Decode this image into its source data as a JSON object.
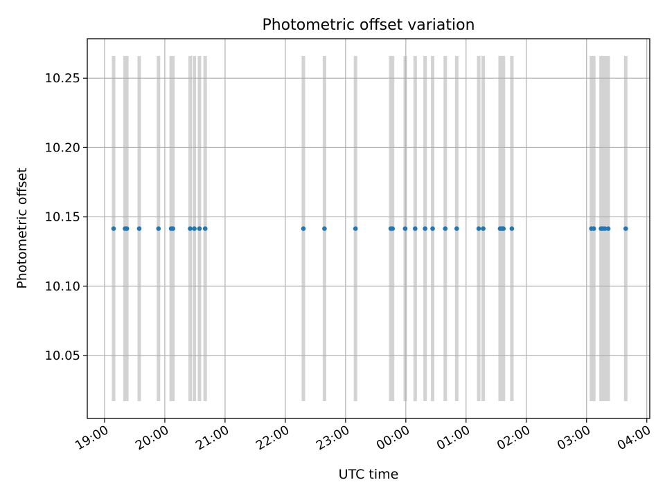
{
  "chart_data": {
    "type": "scatter",
    "title": "Photometric offset variation",
    "xlabel": "UTC time",
    "ylabel": "Photometric offset",
    "x_is_time": true,
    "x_unit": "hours UTC (after 24:00 is next day)",
    "xlim": [
      18.713,
      28.049
    ],
    "ylim": [
      10.0046,
      10.2785
    ],
    "bar_range": [
      10.0171,
      10.2661
    ],
    "x_ticks": [
      {
        "label": "19:00",
        "value": 19
      },
      {
        "label": "20:00",
        "value": 20
      },
      {
        "label": "21:00",
        "value": 21
      },
      {
        "label": "22:00",
        "value": 22
      },
      {
        "label": "23:00",
        "value": 23
      },
      {
        "label": "00:00",
        "value": 24
      },
      {
        "label": "01:00",
        "value": 25
      },
      {
        "label": "02:00",
        "value": 26
      },
      {
        "label": "03:00",
        "value": 27
      },
      {
        "label": "04:00",
        "value": 28
      }
    ],
    "y_ticks": [
      {
        "label": "10.05",
        "value": 10.05
      },
      {
        "label": "10.10",
        "value": 10.1
      },
      {
        "label": "10.15",
        "value": 10.15
      },
      {
        "label": "10.20",
        "value": 10.2
      },
      {
        "label": "10.25",
        "value": 10.25
      }
    ],
    "grid": true,
    "series": [
      {
        "y_value": 10.1415,
        "x": [
          19.15,
          19.34,
          19.37,
          19.575,
          19.895,
          20.105,
          20.135,
          20.42,
          20.49,
          20.575,
          20.67,
          22.3,
          22.65,
          23.165,
          23.75,
          23.78,
          23.99,
          24.155,
          24.32,
          24.445,
          24.655,
          24.845,
          25.21,
          25.285,
          25.565,
          25.595,
          25.62,
          25.76,
          27.08,
          27.12,
          27.24,
          27.27,
          27.305,
          27.36,
          27.65
        ]
      }
    ],
    "colors": {
      "points": "#1f77b4",
      "bars": "#d3d3d3",
      "grid": "#b0b0b0",
      "axes": "#000000"
    }
  }
}
